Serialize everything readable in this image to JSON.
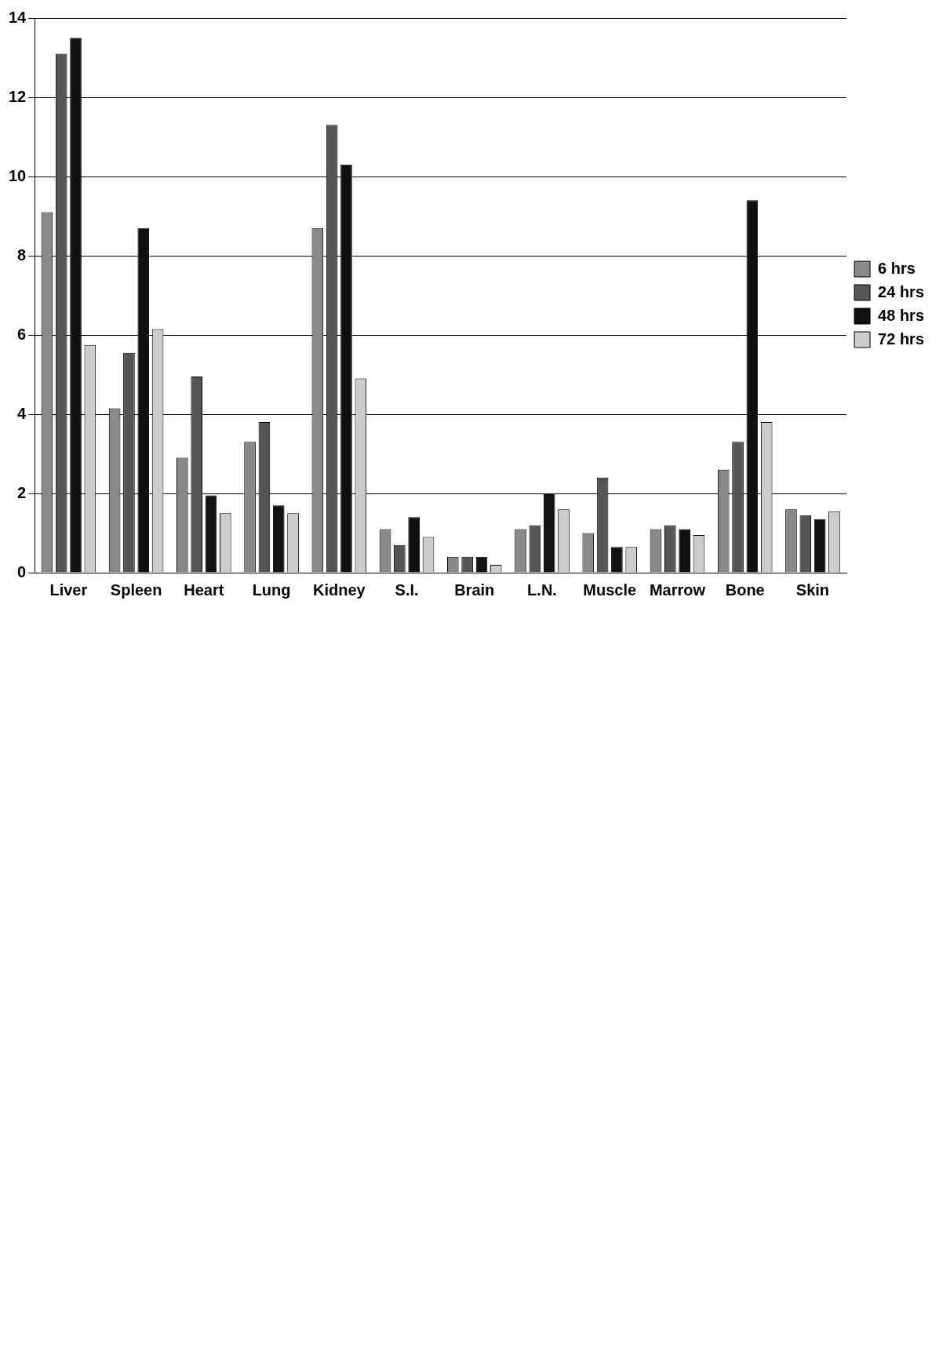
{
  "chart_data": {
    "type": "bar",
    "categories": [
      "Liver",
      "Spleen",
      "Heart",
      "Lung",
      "Kidney",
      "S.I.",
      "Brain",
      "L.N.",
      "Muscle",
      "Marrow",
      "Bone",
      "Skin"
    ],
    "series": [
      {
        "name": "6 hrs",
        "color": "#888888",
        "values": [
          9.1,
          4.15,
          2.9,
          3.3,
          8.7,
          1.1,
          0.4,
          1.1,
          1.0,
          1.1,
          2.6,
          1.6
        ]
      },
      {
        "name": "24 hrs",
        "color": "#555555",
        "values": [
          13.1,
          5.55,
          4.95,
          3.8,
          11.3,
          0.7,
          0.4,
          1.2,
          2.4,
          1.2,
          3.3,
          1.45
        ]
      },
      {
        "name": "48 hrs",
        "color": "#111111",
        "values": [
          13.5,
          8.7,
          1.95,
          1.7,
          10.3,
          1.4,
          0.4,
          2.0,
          0.65,
          1.1,
          9.4,
          1.35
        ]
      },
      {
        "name": "72 hrs",
        "color": "#cccccc",
        "values": [
          5.75,
          6.15,
          1.5,
          1.5,
          4.9,
          0.9,
          0.2,
          1.6,
          0.65,
          0.95,
          3.8,
          1.55
        ]
      }
    ],
    "ylim": [
      0,
      14
    ],
    "yticks": [
      0,
      2,
      4,
      6,
      8,
      10,
      12,
      14
    ],
    "grid": "y",
    "legend": "right"
  }
}
